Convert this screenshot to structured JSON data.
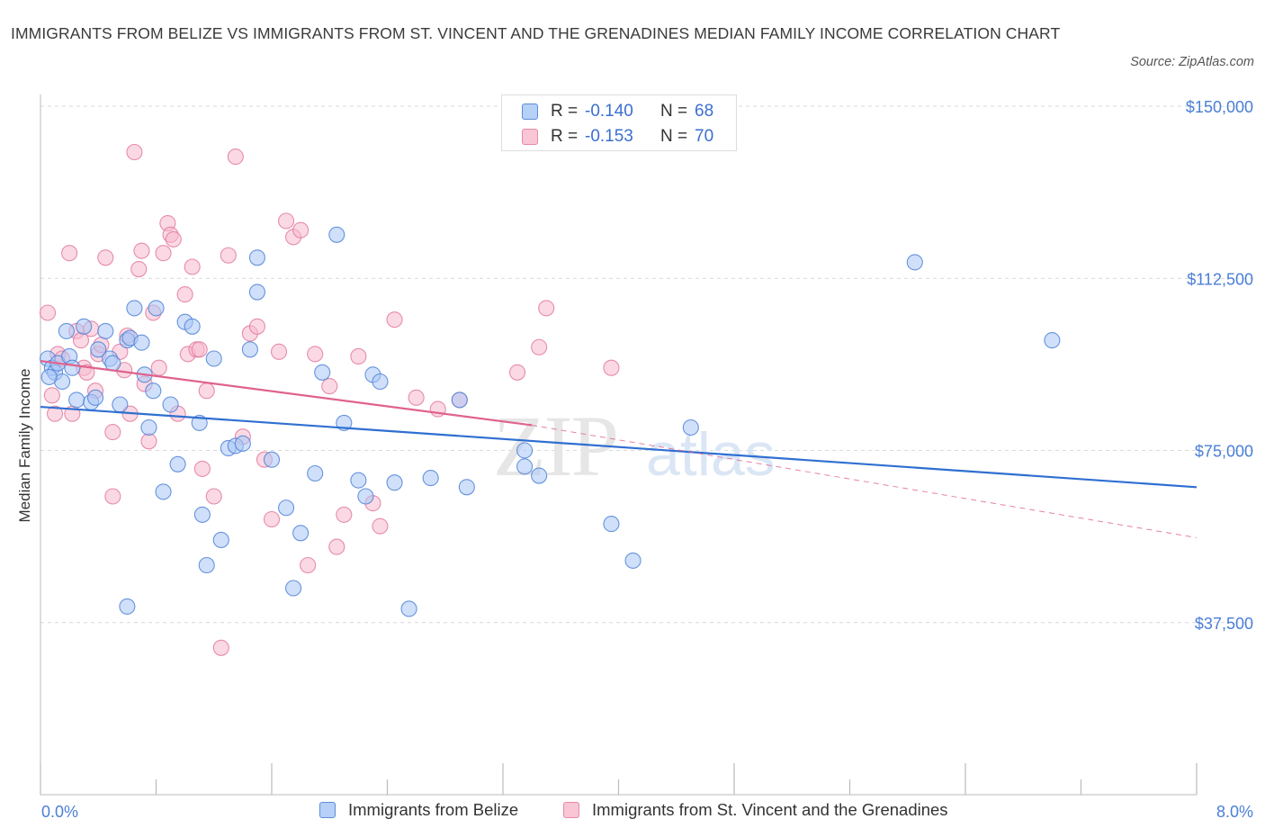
{
  "title": "IMMIGRANTS FROM BELIZE VS IMMIGRANTS FROM ST. VINCENT AND THE GRENADINES MEDIAN FAMILY INCOME CORRELATION CHART",
  "source": "Source: ZipAtlas.com",
  "watermark": {
    "zip": "ZIP",
    "atlas": "atlas"
  },
  "legend": {
    "series": [
      {
        "r_label": "R =",
        "r_value": "-0.140",
        "n_label": "N =",
        "n_value": "68"
      },
      {
        "r_label": "R =",
        "r_value": "-0.153",
        "n_label": "N =",
        "n_value": "70"
      }
    ]
  },
  "chart_data": {
    "type": "scatter",
    "title": "IMMIGRANTS FROM BELIZE VS IMMIGRANTS FROM ST. VINCENT AND THE GRENADINES MEDIAN FAMILY INCOME CORRELATION CHART",
    "xlabel": "",
    "ylabel": "Median Family Income",
    "xlim": [
      0,
      8
    ],
    "ylim": [
      0,
      150000
    ],
    "x_tick_labels": [
      "0.0%",
      "8.0%"
    ],
    "y_ticks": [
      37500,
      75000,
      112500,
      150000
    ],
    "y_tick_labels": [
      "$37,500",
      "$75,000",
      "$112,500",
      "$150,000"
    ],
    "grid": true,
    "legend_position": "bottom",
    "colors": {
      "belize_fill": "#a9c6f5",
      "belize_stroke": "#4f83d6",
      "belize_line": "#2f6fd1",
      "svg_fill": "#f7b9cd",
      "svg_stroke": "#e27a9f",
      "svg_line": "#e0628e",
      "tick_label": "#4a7fd6",
      "grid": "#d9d9d9"
    },
    "series": [
      {
        "name": "Immigrants from Belize",
        "r": -0.14,
        "n": 68,
        "trend": {
          "x0": 0.0,
          "y0": 84500,
          "x1": 8.0,
          "y1": 67000
        },
        "points": [
          [
            0.05,
            95000
          ],
          [
            0.08,
            93000
          ],
          [
            0.1,
            92000
          ],
          [
            0.12,
            94000
          ],
          [
            0.15,
            90000
          ],
          [
            0.06,
            91000
          ],
          [
            0.18,
            101000
          ],
          [
            0.2,
            95500
          ],
          [
            0.22,
            93000
          ],
          [
            0.25,
            86000
          ],
          [
            0.3,
            102000
          ],
          [
            0.35,
            85500
          ],
          [
            0.38,
            86500
          ],
          [
            0.4,
            97000
          ],
          [
            0.45,
            101000
          ],
          [
            0.48,
            95000
          ],
          [
            0.5,
            94000
          ],
          [
            0.55,
            85000
          ],
          [
            0.6,
            99000
          ],
          [
            0.62,
            99500
          ],
          [
            0.65,
            106000
          ],
          [
            0.7,
            98500
          ],
          [
            0.72,
            91500
          ],
          [
            0.78,
            88000
          ],
          [
            0.75,
            80000
          ],
          [
            0.8,
            106000
          ],
          [
            0.85,
            66000
          ],
          [
            0.9,
            85000
          ],
          [
            0.95,
            72000
          ],
          [
            1.0,
            103000
          ],
          [
            1.05,
            102000
          ],
          [
            1.1,
            81000
          ],
          [
            1.12,
            61000
          ],
          [
            1.15,
            50000
          ],
          [
            1.2,
            95000
          ],
          [
            1.25,
            55500
          ],
          [
            0.6,
            41000
          ],
          [
            1.3,
            75500
          ],
          [
            1.35,
            76000
          ],
          [
            1.4,
            76500
          ],
          [
            1.45,
            97000
          ],
          [
            1.5,
            117000
          ],
          [
            1.5,
            109500
          ],
          [
            1.6,
            73000
          ],
          [
            1.7,
            62500
          ],
          [
            1.75,
            45000
          ],
          [
            1.8,
            57000
          ],
          [
            1.9,
            70000
          ],
          [
            1.95,
            92000
          ],
          [
            2.05,
            122000
          ],
          [
            2.1,
            81000
          ],
          [
            2.2,
            68500
          ],
          [
            2.25,
            65000
          ],
          [
            2.3,
            91500
          ],
          [
            2.35,
            90000
          ],
          [
            2.45,
            68000
          ],
          [
            2.55,
            40500
          ],
          [
            2.7,
            69000
          ],
          [
            2.9,
            86000
          ],
          [
            2.95,
            67000
          ],
          [
            3.35,
            71500
          ],
          [
            3.35,
            75000
          ],
          [
            3.45,
            69500
          ],
          [
            3.95,
            59000
          ],
          [
            4.1,
            51000
          ],
          [
            4.5,
            80000
          ],
          [
            6.05,
            116000
          ],
          [
            7.0,
            99000
          ]
        ]
      },
      {
        "name": "Immigrants from St. Vincent and the Grenadines",
        "r": -0.153,
        "n": 70,
        "trend": {
          "x0": 0.0,
          "y0": 94500,
          "x1": 3.4,
          "y1": 80500,
          "dash_x1": 8.0,
          "dash_y1": 56000
        },
        "points": [
          [
            0.05,
            105000
          ],
          [
            0.08,
            87000
          ],
          [
            0.1,
            83000
          ],
          [
            0.12,
            96000
          ],
          [
            0.15,
            95000
          ],
          [
            0.2,
            118000
          ],
          [
            0.22,
            83000
          ],
          [
            0.25,
            101000
          ],
          [
            0.28,
            99000
          ],
          [
            0.3,
            93000
          ],
          [
            0.32,
            92000
          ],
          [
            0.35,
            101500
          ],
          [
            0.38,
            88000
          ],
          [
            0.4,
            96000
          ],
          [
            0.42,
            98000
          ],
          [
            0.45,
            117000
          ],
          [
            0.5,
            79000
          ],
          [
            0.5,
            65000
          ],
          [
            0.55,
            96500
          ],
          [
            0.58,
            92500
          ],
          [
            0.6,
            100000
          ],
          [
            0.62,
            83000
          ],
          [
            0.65,
            140000
          ],
          [
            0.68,
            114500
          ],
          [
            0.7,
            118500
          ],
          [
            0.72,
            89500
          ],
          [
            0.75,
            77000
          ],
          [
            0.78,
            105000
          ],
          [
            0.82,
            93000
          ],
          [
            0.85,
            118000
          ],
          [
            0.88,
            124500
          ],
          [
            0.9,
            122000
          ],
          [
            0.92,
            121000
          ],
          [
            0.95,
            83000
          ],
          [
            1.0,
            109000
          ],
          [
            1.02,
            96000
          ],
          [
            1.05,
            115000
          ],
          [
            1.08,
            97000
          ],
          [
            1.1,
            97000
          ],
          [
            1.12,
            71000
          ],
          [
            1.15,
            88000
          ],
          [
            1.2,
            65000
          ],
          [
            1.25,
            32000
          ],
          [
            1.3,
            117500
          ],
          [
            1.35,
            139000
          ],
          [
            1.4,
            78000
          ],
          [
            1.45,
            100500
          ],
          [
            1.5,
            102000
          ],
          [
            1.55,
            73000
          ],
          [
            1.6,
            60000
          ],
          [
            1.65,
            96500
          ],
          [
            1.7,
            125000
          ],
          [
            1.75,
            121500
          ],
          [
            1.8,
            123000
          ],
          [
            1.85,
            50000
          ],
          [
            1.9,
            96000
          ],
          [
            2.0,
            89000
          ],
          [
            2.05,
            54000
          ],
          [
            2.1,
            61000
          ],
          [
            2.2,
            95500
          ],
          [
            2.3,
            63500
          ],
          [
            2.35,
            58500
          ],
          [
            2.45,
            103500
          ],
          [
            2.6,
            86500
          ],
          [
            2.75,
            84000
          ],
          [
            2.9,
            86000
          ],
          [
            3.3,
            92000
          ],
          [
            3.45,
            97500
          ],
          [
            3.5,
            106000
          ],
          [
            3.95,
            93000
          ]
        ]
      }
    ]
  },
  "x_axis": {
    "left_label": "0.0%",
    "right_label": "8.0%"
  },
  "y_axis": {
    "title": "Median Family Income"
  }
}
